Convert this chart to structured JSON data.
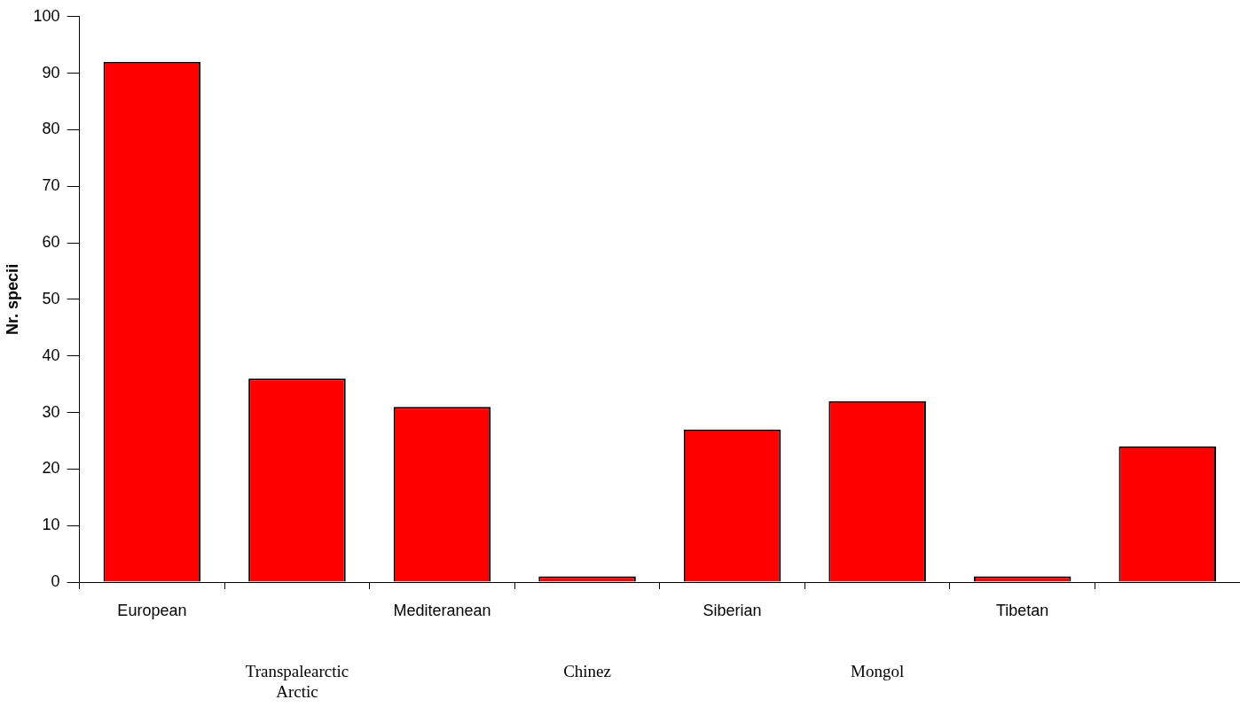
{
  "chart_data": {
    "type": "bar",
    "ylabel": "Nr. specii",
    "categories": [
      "European",
      "Transpalearctic\nArctic",
      "Mediteranean",
      "Chinez",
      "Siberian",
      "Mongol",
      "Tibetan",
      null
    ],
    "values": [
      92,
      36,
      31,
      1,
      27,
      32,
      1,
      24
    ],
    "color": "#ff0000",
    "ylim": [
      0,
      100
    ],
    "yticks": [
      0,
      10,
      20,
      30,
      40,
      50,
      60,
      70,
      80,
      90,
      100
    ],
    "grid": false,
    "legend": false
  }
}
